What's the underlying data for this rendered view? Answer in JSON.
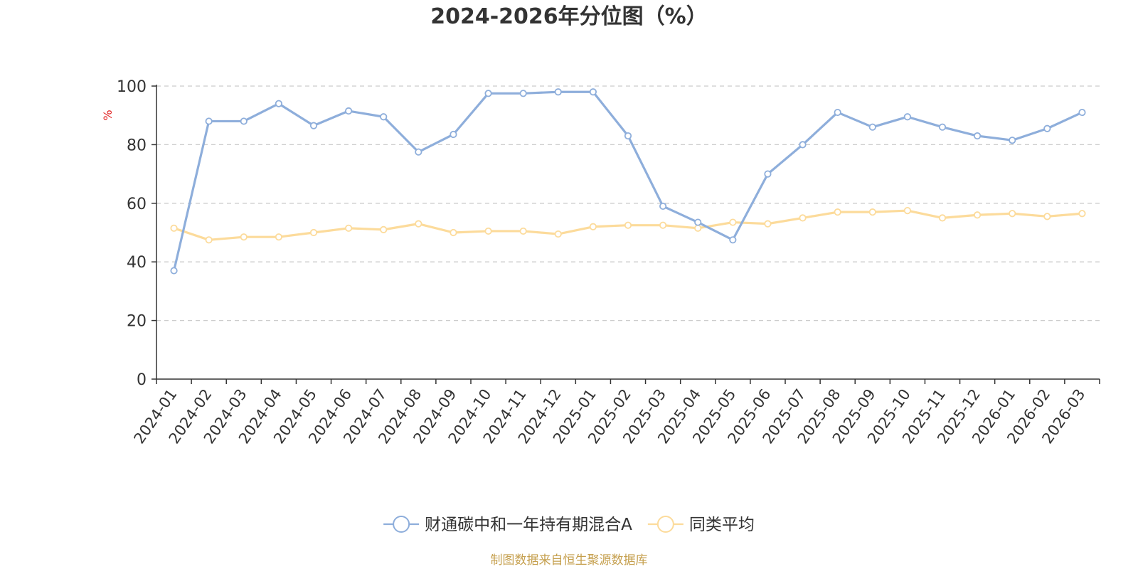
{
  "chart_data": {
    "type": "line",
    "title": "2024-2026年分位图（%）",
    "ylabel": "%",
    "ylim": [
      0,
      100
    ],
    "yticks": [
      0,
      20,
      40,
      60,
      80,
      100
    ],
    "grid": true,
    "legend_position": "bottom",
    "categories": [
      "2024-01",
      "2024-02",
      "2024-03",
      "2024-04",
      "2024-05",
      "2024-06",
      "2024-07",
      "2024-08",
      "2024-09",
      "2024-10",
      "2024-11",
      "2024-12",
      "2025-01",
      "2025-02",
      "2025-03",
      "2025-04",
      "2025-05",
      "2025-06",
      "2025-07",
      "2025-08",
      "2025-09",
      "2025-10",
      "2025-11",
      "2025-12",
      "2026-01",
      "2026-02",
      "2026-03"
    ],
    "series": [
      {
        "name": "财通碳中和一年持有期混合A",
        "color": "#8eaedb",
        "values": [
          37,
          88,
          88,
          94,
          86.5,
          91.5,
          89.5,
          77.5,
          83.5,
          97.5,
          97.5,
          98,
          98,
          83,
          59,
          53.5,
          47.5,
          70,
          80,
          91,
          86,
          89.5,
          86,
          83,
          81.5,
          85.5,
          91
        ]
      },
      {
        "name": "同类平均",
        "color": "#fcdb9b",
        "values": [
          51.5,
          47.5,
          48.5,
          48.5,
          50,
          51.5,
          51,
          53,
          50,
          50.5,
          50.5,
          49.5,
          52,
          52.5,
          52.5,
          51.5,
          53.5,
          53,
          55,
          57,
          57,
          57.5,
          55,
          56,
          56.5,
          55.5,
          56.5
        ]
      }
    ]
  },
  "source": {
    "text": "制图数据来自恒生聚源数据库",
    "color": "#c59f4d"
  },
  "colors": {
    "axis": "#333333",
    "grid": "#cccccc",
    "unit": "#e02020"
  }
}
